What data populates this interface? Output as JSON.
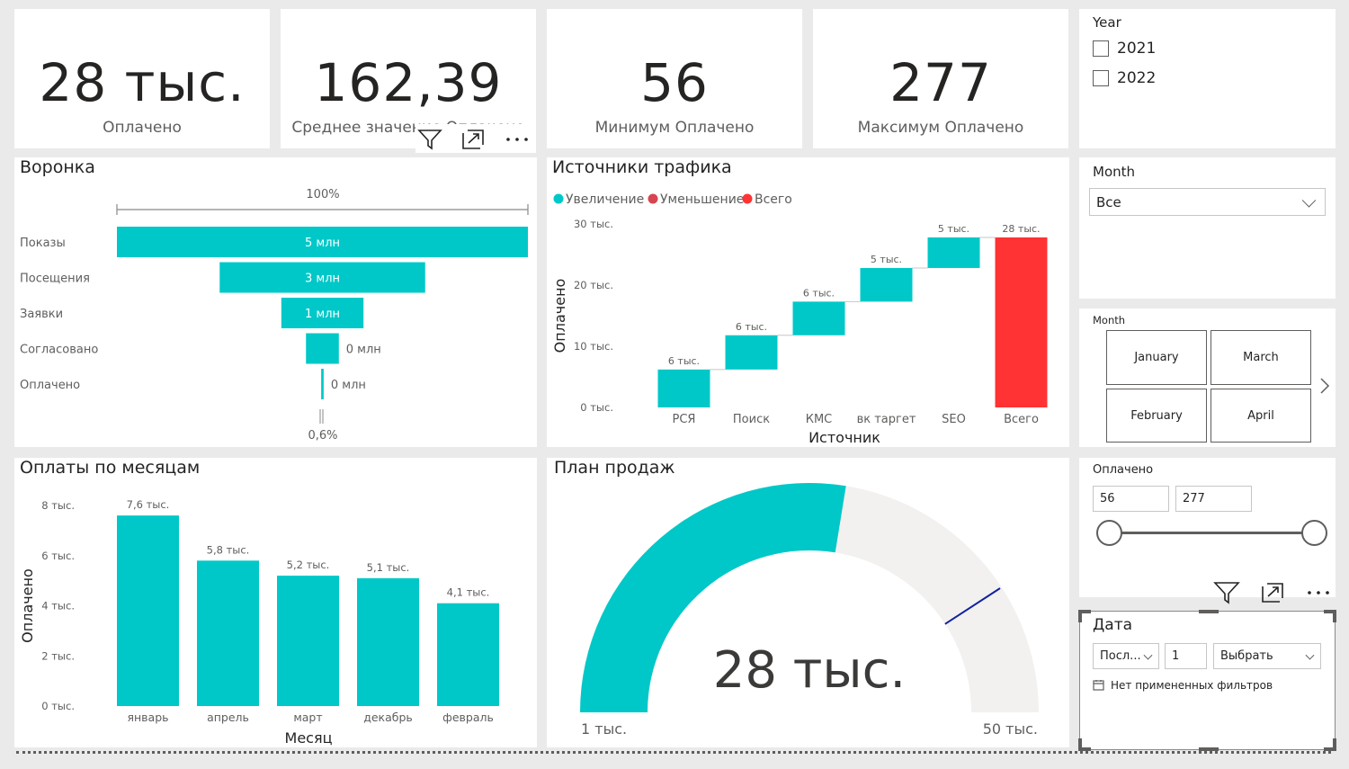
{
  "kpis": [
    {
      "value": "28 тыс.",
      "label": "Оплачено"
    },
    {
      "value": "162,39",
      "label": "Среднее значение Оплачено"
    },
    {
      "value": "56",
      "label": "Минимум Оплачено"
    },
    {
      "value": "277",
      "label": "Максимум Оплачено"
    }
  ],
  "year_slicer": {
    "title": "Year",
    "options": [
      "2021",
      "2022"
    ]
  },
  "month_dropdown": {
    "title": "Month",
    "selected": "Все"
  },
  "month_tiles": {
    "title": "Month",
    "tiles": [
      "January",
      "March",
      "February",
      "April"
    ]
  },
  "paid_slider": {
    "title": "Оплачено",
    "min": "56",
    "max": "277",
    "low_fraction": 0,
    "high_fraction": 1
  },
  "date_slicer": {
    "title": "Дата",
    "mode": "Посл...",
    "count": "1",
    "unit": "Выбрать",
    "no_filters": "Нет примененных фильтров"
  },
  "colors": {
    "teal": "#01c8c8",
    "red": "#ff3333",
    "decrease": "#d64550",
    "track": "#f2f1f0",
    "needle": "#12239e"
  },
  "funnel": {
    "title": "Воронка",
    "top_pct": "100%",
    "bottom_pct": "0,6%",
    "stages": [
      {
        "label": "Показы",
        "value": 5,
        "text": "5 млн"
      },
      {
        "label": "Посещения",
        "value": 2.5,
        "text": "3 млн"
      },
      {
        "label": "Заявки",
        "value": 1,
        "text": "1 млн"
      },
      {
        "label": "Согласовано",
        "value": 0.4,
        "text": "0 млн"
      },
      {
        "label": "Оплачено",
        "value": 0.03,
        "text": "0 млн"
      }
    ]
  },
  "gauge": {
    "title": "План продаж",
    "value_text": "28 тыс.",
    "min_text": "1 тыс.",
    "max_text": "50 тыс.",
    "value": 28,
    "min": 1,
    "max": 50,
    "target": 41
  },
  "chart_data": [
    {
      "type": "waterfall",
      "title": "Источники трафика",
      "legend": [
        "Увеличение",
        "Уменьшение",
        "Всего"
      ],
      "xlabel": "Источник",
      "ylabel": "Оплачено",
      "yticks": [
        "0 тыс.",
        "10 тыс.",
        "20 тыс.",
        "30 тыс."
      ],
      "ylim": [
        0,
        30
      ],
      "categories": [
        "РСЯ",
        "Поиск",
        "КМС",
        "вк таргет",
        "SEO",
        "Всего"
      ],
      "starts": [
        0,
        6.2,
        11.8,
        17.3,
        22.8,
        0
      ],
      "ends": [
        6.2,
        11.8,
        17.3,
        22.8,
        27.8,
        27.8
      ],
      "labels": [
        "6 тыс.",
        "6 тыс.",
        "6 тыс.",
        "5 тыс.",
        "5 тыс.",
        "28 тыс."
      ]
    },
    {
      "type": "bar",
      "title": "Оплаты по месяцам",
      "xlabel": "Месяц",
      "ylabel": "Оплачено",
      "yticks": [
        "0 тыс.",
        "2 тыс.",
        "4 тыс.",
        "6 тыс.",
        "8 тыс."
      ],
      "ylim": [
        0,
        8
      ],
      "categories": [
        "январь",
        "апрель",
        "март",
        "декабрь",
        "февраль"
      ],
      "values": [
        7.6,
        5.8,
        5.2,
        5.1,
        4.1
      ],
      "labels": [
        "7,6 тыс.",
        "5,8 тыс.",
        "5,2 тыс.",
        "5,1 тыс.",
        "4,1 тыс."
      ]
    }
  ]
}
